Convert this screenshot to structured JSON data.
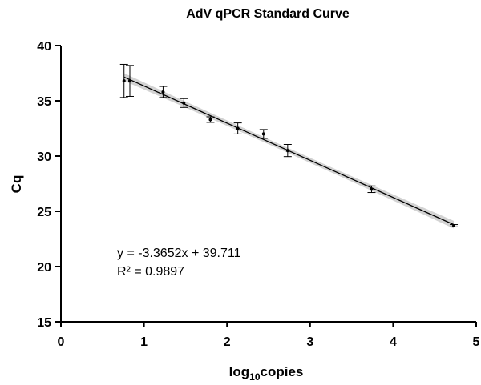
{
  "chart_data": {
    "type": "scatter",
    "title": "AdV qPCR Standard Curve",
    "xlabel_main": "log",
    "xlabel_sub": "10",
    "xlabel_tail": "copies",
    "ylabel": "Cq",
    "xlim": [
      0,
      5
    ],
    "ylim": [
      15,
      40
    ],
    "xticks": [
      "0",
      "1",
      "2",
      "3",
      "4",
      "5"
    ],
    "yticks": [
      "15",
      "20",
      "25",
      "30",
      "35",
      "40"
    ],
    "grid": false,
    "legend": "none",
    "points": [
      {
        "x": 0.76,
        "y": 36.8,
        "err": 1.5
      },
      {
        "x": 0.83,
        "y": 36.8,
        "err": 1.4
      },
      {
        "x": 1.23,
        "y": 35.8,
        "err": 0.5
      },
      {
        "x": 1.48,
        "y": 34.8,
        "err": 0.4
      },
      {
        "x": 1.8,
        "y": 33.3,
        "err": 0.25
      },
      {
        "x": 2.13,
        "y": 32.5,
        "err": 0.5
      },
      {
        "x": 2.44,
        "y": 32.0,
        "err": 0.4
      },
      {
        "x": 2.73,
        "y": 30.5,
        "err": 0.55
      },
      {
        "x": 3.74,
        "y": 27.0,
        "err": 0.3
      },
      {
        "x": 4.73,
        "y": 23.7,
        "err": 0.1
      }
    ],
    "fit": {
      "slope": -3.3652,
      "intercept": 39.711,
      "x_range": [
        0.76,
        4.73
      ],
      "ci_halfwidth": 0.35
    },
    "annotation_line1": "y = -3.3652x + 39.711",
    "annotation_line2": "R² = 0.9897",
    "colors": {
      "line": "#000000",
      "band": "#d3d3d3",
      "marker": "#000000"
    }
  }
}
